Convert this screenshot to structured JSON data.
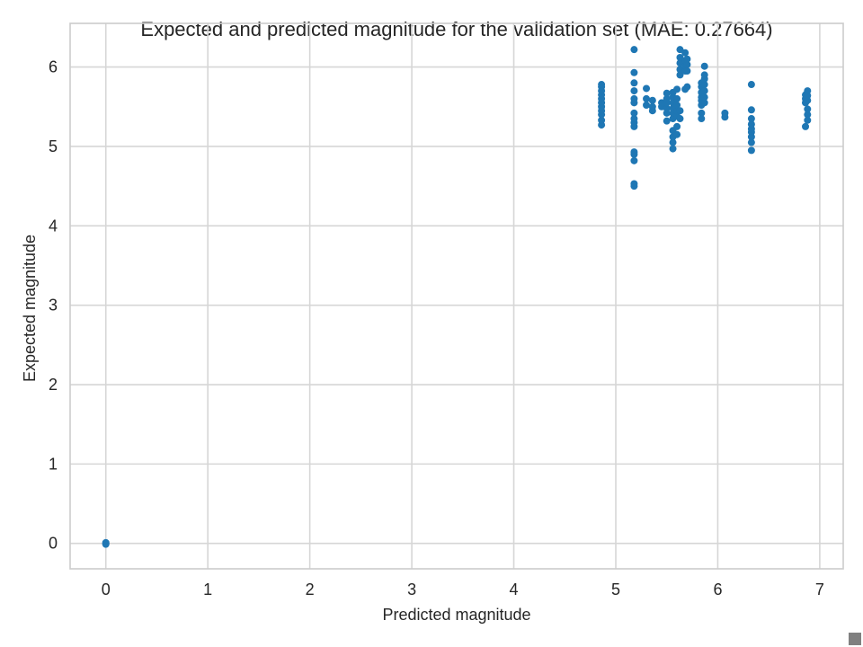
{
  "chart_data": {
    "type": "scatter",
    "title": "Expected and predicted magnitude for the validation set (MAE: 0.27664)",
    "xlabel": "Predicted magnitude",
    "ylabel": "Expected magnitude",
    "xlim": [
      -0.35,
      7.23
    ],
    "ylim": [
      -0.32,
      6.55
    ],
    "xticks": [
      0,
      1,
      2,
      3,
      4,
      5,
      6,
      7
    ],
    "yticks": [
      0,
      1,
      2,
      3,
      4,
      5,
      6
    ],
    "grid": true,
    "color": "#1f77b4",
    "points": [
      [
        0.0,
        0.0
      ],
      [
        0.0,
        0.01
      ],
      [
        0.0,
        -0.01
      ],
      [
        4.86,
        5.27
      ],
      [
        4.86,
        5.33
      ],
      [
        4.86,
        5.4
      ],
      [
        4.86,
        5.45
      ],
      [
        4.86,
        5.5
      ],
      [
        4.86,
        5.55
      ],
      [
        4.86,
        5.6
      ],
      [
        4.86,
        5.65
      ],
      [
        4.86,
        5.7
      ],
      [
        4.86,
        5.75
      ],
      [
        4.86,
        5.78
      ],
      [
        5.18,
        4.5
      ],
      [
        5.18,
        4.53
      ],
      [
        5.18,
        4.82
      ],
      [
        5.18,
        4.9
      ],
      [
        5.18,
        4.93
      ],
      [
        5.18,
        5.25
      ],
      [
        5.18,
        5.3
      ],
      [
        5.18,
        5.35
      ],
      [
        5.18,
        5.42
      ],
      [
        5.18,
        5.55
      ],
      [
        5.18,
        5.6
      ],
      [
        5.18,
        5.7
      ],
      [
        5.18,
        5.8
      ],
      [
        5.18,
        5.93
      ],
      [
        5.18,
        6.22
      ],
      [
        5.3,
        5.73
      ],
      [
        5.3,
        5.6
      ],
      [
        5.3,
        5.52
      ],
      [
        5.36,
        5.45
      ],
      [
        5.36,
        5.5
      ],
      [
        5.36,
        5.58
      ],
      [
        5.45,
        5.5
      ],
      [
        5.45,
        5.55
      ],
      [
        5.5,
        5.32
      ],
      [
        5.5,
        5.42
      ],
      [
        5.5,
        5.48
      ],
      [
        5.5,
        5.55
      ],
      [
        5.5,
        5.6
      ],
      [
        5.5,
        5.67
      ],
      [
        5.56,
        4.97
      ],
      [
        5.56,
        5.05
      ],
      [
        5.56,
        5.12
      ],
      [
        5.56,
        5.2
      ],
      [
        5.56,
        5.35
      ],
      [
        5.56,
        5.42
      ],
      [
        5.56,
        5.48
      ],
      [
        5.56,
        5.55
      ],
      [
        5.56,
        5.62
      ],
      [
        5.56,
        5.68
      ],
      [
        5.6,
        5.15
      ],
      [
        5.6,
        5.25
      ],
      [
        5.6,
        5.38
      ],
      [
        5.6,
        5.45
      ],
      [
        5.6,
        5.52
      ],
      [
        5.6,
        5.6
      ],
      [
        5.6,
        5.72
      ],
      [
        5.63,
        5.35
      ],
      [
        5.63,
        5.45
      ],
      [
        5.63,
        5.9
      ],
      [
        5.63,
        5.97
      ],
      [
        5.63,
        6.05
      ],
      [
        5.63,
        6.12
      ],
      [
        5.63,
        6.22
      ],
      [
        5.68,
        5.72
      ],
      [
        5.68,
        5.95
      ],
      [
        5.68,
        6.02
      ],
      [
        5.68,
        6.08
      ],
      [
        5.68,
        6.18
      ],
      [
        5.7,
        5.75
      ],
      [
        5.7,
        5.95
      ],
      [
        5.7,
        6.03
      ],
      [
        5.7,
        6.1
      ],
      [
        5.84,
        5.35
      ],
      [
        5.84,
        5.42
      ],
      [
        5.84,
        5.52
      ],
      [
        5.84,
        5.58
      ],
      [
        5.84,
        5.62
      ],
      [
        5.84,
        5.68
      ],
      [
        5.84,
        5.75
      ],
      [
        5.84,
        5.8
      ],
      [
        5.87,
        5.55
      ],
      [
        5.87,
        5.62
      ],
      [
        5.87,
        5.7
      ],
      [
        5.87,
        5.78
      ],
      [
        5.87,
        5.85
      ],
      [
        5.87,
        5.9
      ],
      [
        5.87,
        6.01
      ],
      [
        6.07,
        5.37
      ],
      [
        6.07,
        5.42
      ],
      [
        6.33,
        4.95
      ],
      [
        6.33,
        5.05
      ],
      [
        6.33,
        5.12
      ],
      [
        6.33,
        5.18
      ],
      [
        6.33,
        5.22
      ],
      [
        6.33,
        5.28
      ],
      [
        6.33,
        5.35
      ],
      [
        6.33,
        5.46
      ],
      [
        6.33,
        5.78
      ],
      [
        6.86,
        5.25
      ],
      [
        6.86,
        5.55
      ],
      [
        6.86,
        5.6
      ],
      [
        6.86,
        5.65
      ],
      [
        6.88,
        5.33
      ],
      [
        6.88,
        5.4
      ],
      [
        6.88,
        5.47
      ],
      [
        6.88,
        5.58
      ],
      [
        6.88,
        5.64
      ],
      [
        6.88,
        5.7
      ]
    ]
  }
}
